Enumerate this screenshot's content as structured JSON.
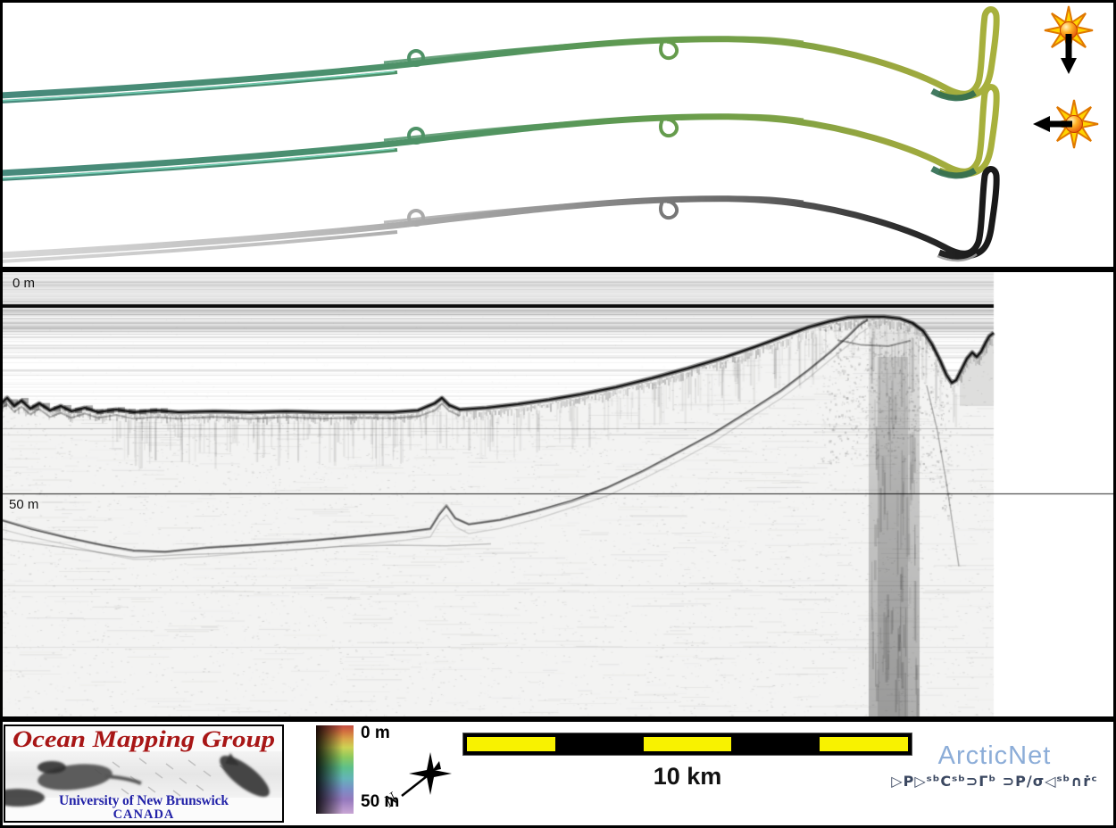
{
  "figure": {
    "type": "ocean-mapping-survey-figure"
  },
  "track_panel": {
    "tracks": [
      {
        "id": "shaded-bathymetry-track-1",
        "illumination": "down",
        "palette": [
          "#47897c",
          "#4a8f70",
          "#529460",
          "#629b4e",
          "#7fa244",
          "#9aa73f",
          "#aab23c"
        ]
      },
      {
        "id": "shaded-bathymetry-track-2",
        "illumination": "left",
        "palette": [
          "#47897c",
          "#4a8f70",
          "#529460",
          "#629b4e",
          "#7fa244",
          "#9aa73f",
          "#aab23c"
        ]
      },
      {
        "id": "backscatter-track",
        "illumination": "none",
        "palette": [
          "#d8d8d8",
          "#bdbdbd",
          "#949494",
          "#626262",
          "#2b2b2b",
          "#151515"
        ]
      }
    ],
    "sun_icons": [
      {
        "direction": "down"
      },
      {
        "direction": "left"
      }
    ]
  },
  "profile_panel": {
    "depth_top_label": "0 m",
    "depth_mid_label": "50 m"
  },
  "footer": {
    "omg": {
      "title": "Ocean Mapping Group",
      "university": "University of New Brunswick",
      "country": "CANADA",
      "title_color": "#a81616",
      "text_color": "#2323a8"
    },
    "colorbar": {
      "top_label": "0 m",
      "bottom_label": "50 m",
      "gradient": [
        "#c44e44",
        "#d2703f",
        "#d9a348",
        "#cdd254",
        "#8cc95e",
        "#5dc08b",
        "#64b4b8",
        "#7a8fc6",
        "#9579bd",
        "#c9a6d4"
      ]
    },
    "north_letter": "N",
    "scalebar": {
      "label": "10 km",
      "segments": 5,
      "segment_color": "#f8f200"
    },
    "arcticnet": {
      "name": "ArcticNet",
      "name_color": "#8cadd8",
      "syllabics": "ᐅᑭᐅᖅᑕᖅᑐᒥᒃ ᑐᑭᓯᓂᐊᖅᑎᒌᑦ",
      "syllabics_display": "▷P▷ˢᵇCˢᵇ⊃Γᵇ ⊃P∕σ◁ˢᵇ∩ṙᶜ",
      "syllabics_color": "#3a4760"
    }
  }
}
